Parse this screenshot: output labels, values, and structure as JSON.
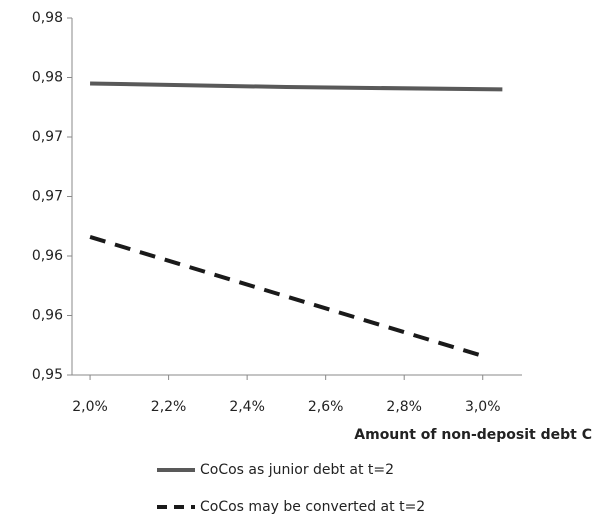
{
  "chart_data": {
    "type": "line",
    "x_label": "Amount of non-deposit debt C",
    "series": [
      {
        "name": "CoCos as junior debt at t=2",
        "color": "#595959",
        "dash": "solid",
        "x": [
          2.0,
          2.5,
          3.05
        ],
        "values": [
          0.9745,
          0.9742,
          0.974
        ]
      },
      {
        "name": "CoCos may be converted at t=2",
        "color": "#1a1a1a",
        "dash": "dashed",
        "x": [
          2.0,
          3.0
        ],
        "values": [
          0.9616,
          0.9516
        ]
      }
    ],
    "xlim": [
      1.954,
      3.1
    ],
    "xticks": [
      {
        "value": 2.0,
        "label": "2,0%"
      },
      {
        "value": 2.2,
        "label": "2,2%"
      },
      {
        "value": 2.4,
        "label": "2,4%"
      },
      {
        "value": 2.6,
        "label": "2,6%"
      },
      {
        "value": 2.8,
        "label": "2,8%"
      },
      {
        "value": 3.0,
        "label": "3,0%"
      }
    ],
    "ylim": [
      0.95,
      0.98
    ],
    "yticks": [
      {
        "value": 0.95,
        "label": "0,95"
      },
      {
        "value": 0.955,
        "label": "0,96"
      },
      {
        "value": 0.96,
        "label": "0,96"
      },
      {
        "value": 0.965,
        "label": "0,97"
      },
      {
        "value": 0.97,
        "label": "0,97"
      },
      {
        "value": 0.975,
        "label": "0,98"
      },
      {
        "value": 0.98,
        "label": "0,98"
      }
    ],
    "grid": false
  }
}
